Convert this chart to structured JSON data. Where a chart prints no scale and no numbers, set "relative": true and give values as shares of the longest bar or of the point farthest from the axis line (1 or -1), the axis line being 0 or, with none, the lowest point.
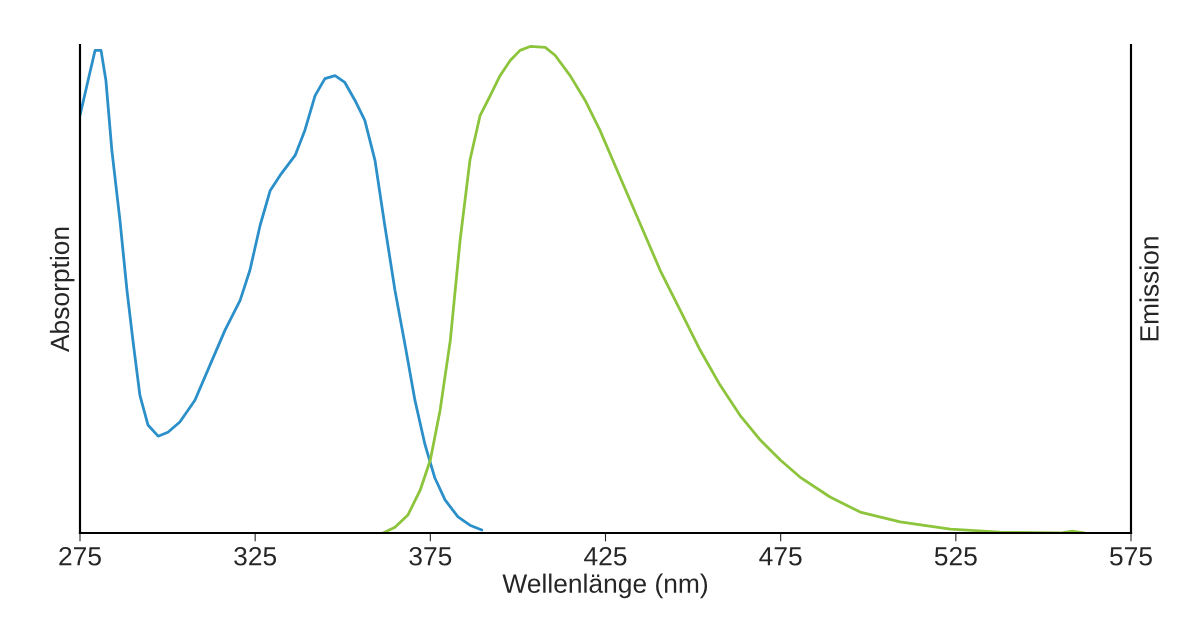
{
  "chart_data": {
    "type": "line",
    "relative": true,
    "xlabel": "Wellenlänge (nm)",
    "ylabel": "Absorption",
    "y2label": "Emission",
    "xlim": [
      275,
      575
    ],
    "xticks": [
      275,
      325,
      375,
      425,
      475,
      525,
      575
    ],
    "grid": false,
    "legend": false,
    "marker": "none",
    "line_style": "solid",
    "series": [
      {
        "color": "#2b8fc9",
        "x": [
          275,
          277.3,
          279.3,
          281,
          282.4,
          284.1,
          286.4,
          288.4,
          290.1,
          292.1,
          294.4,
          297.3,
          300.1,
          303.5,
          307.8,
          312.1,
          316.4,
          320.7,
          323.5,
          326.4,
          329.3,
          332.1,
          336.4,
          339.2,
          342.1,
          344.9,
          347.8,
          350.6,
          353.5,
          356.3,
          359.2,
          362.0,
          364.9,
          367.8,
          370.6,
          373.5,
          376.3,
          379.2,
          382.9,
          386.3,
          389.7
        ],
        "values": [
          0.858,
          0.93,
          0.992,
          0.992,
          0.93,
          0.786,
          0.643,
          0.499,
          0.396,
          0.283,
          0.222,
          0.199,
          0.207,
          0.228,
          0.273,
          0.345,
          0.417,
          0.478,
          0.54,
          0.632,
          0.704,
          0.735,
          0.776,
          0.828,
          0.899,
          0.934,
          0.94,
          0.926,
          0.889,
          0.848,
          0.766,
          0.632,
          0.499,
          0.386,
          0.273,
          0.181,
          0.113,
          0.068,
          0.033,
          0.016,
          0.006
        ]
      },
      {
        "color": "#8cc43c",
        "axis": "y2",
        "x": [
          361.5,
          364.9,
          368.6,
          372.1,
          375,
          377.8,
          380.7,
          383.5,
          386.3,
          389.2,
          392.1,
          394.9,
          397.8,
          400.6,
          403.5,
          407.8,
          410.6,
          414.9,
          419.2,
          423.4,
          427.7,
          432.0,
          436.3,
          440.6,
          446.3,
          452.0,
          457.7,
          463.4,
          469.2,
          474.9,
          480.5,
          489.1,
          497.7,
          509.1,
          523.4,
          537.6,
          554.8,
          558.2,
          561.9
        ],
        "values": [
          0,
          0.012,
          0.037,
          0.088,
          0.15,
          0.253,
          0.396,
          0.602,
          0.766,
          0.858,
          0.899,
          0.94,
          0.971,
          0.992,
          1.0,
          0.998,
          0.982,
          0.94,
          0.889,
          0.828,
          0.756,
          0.684,
          0.612,
          0.54,
          0.458,
          0.376,
          0.304,
          0.242,
          0.191,
          0.15,
          0.115,
          0.074,
          0.043,
          0.023,
          0.008,
          0.002,
          0,
          0.004,
          0
        ]
      }
    ]
  }
}
